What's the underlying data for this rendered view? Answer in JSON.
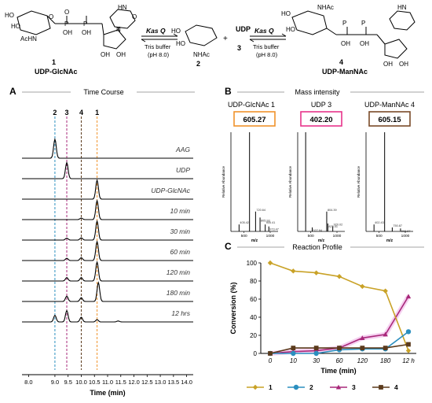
{
  "scheme": {
    "compound1_id": "1",
    "compound1_name": "UDP-GlcNAc",
    "compound2_id": "2",
    "compound3_id": "3",
    "compound3_name": "UDP",
    "plus": "+",
    "compound4_id": "4",
    "compound4_name": "UDP-ManNAc",
    "enzyme1": "Kas Q",
    "enzyme2": "Kas Q",
    "cond1_line1": "Tris buffer",
    "cond1_line2": "(pH 8.0)",
    "cond2_line1": "Tris buffer",
    "cond2_line2": "(pH 8.0)",
    "lbl_HO_a": "HO",
    "lbl_HO_b": "HO",
    "lbl_AcHN": "AcHN",
    "lbl_HN_a": "HN",
    "lbl_O_a": "O",
    "lbl_O_b": "O",
    "lbl_N_a": "N",
    "lbl_OP1": "O",
    "lbl_P1": "P",
    "lbl_P2": "P",
    "lbl_OH1": "OH",
    "lbl_OH2": "OH",
    "lbl_OHr1": "OH",
    "lbl_OHr2": "OH",
    "lbl_HO_2a": "HO",
    "lbl_HO_2b": "HO",
    "lbl_NHAc_2": "NHAc",
    "lbl_HO_4a": "HO",
    "lbl_HO_4b": "HO",
    "lbl_NHAc_4": "NHAc",
    "lbl_HN_4": "HN",
    "lbl_P3": "P",
    "lbl_P4": "P",
    "lbl_OH_4a": "OH",
    "lbl_OH_4b": "OH",
    "lbl_OH_4c": "OH",
    "lbl_OH_4d": "OH"
  },
  "panels": {
    "a_letter": "A",
    "a_title": "Time Course",
    "b_letter": "B",
    "b_title": "Mass intensity",
    "c_letter": "C",
    "c_title": "Reaction Profile"
  },
  "colors": {
    "c1": "#c9a227",
    "c2": "#2b8fbf",
    "c3": "#a8287a",
    "c4": "#5b3a1c",
    "c3_glow": "#f3c4ec",
    "box1": "#f0932b",
    "box3": "#e8348a",
    "box4": "#7a4a28"
  },
  "chart_data": [
    {
      "type": "line",
      "title": "Time Course",
      "xlabel": "Time (min)",
      "x_ticks": [
        "8.0",
        "9.0",
        "9.5",
        "10.0",
        "10.5",
        "11.0",
        "11.5",
        "12.0",
        "12.5",
        "13.0",
        "13.5",
        "14.0"
      ],
      "xlim": [
        7.75,
        14.25
      ],
      "peak_markers": [
        {
          "label": "2",
          "x": 9.0,
          "color": "#2b8fbf"
        },
        {
          "label": "3",
          "x": 9.45,
          "color": "#a8287a"
        },
        {
          "label": "4",
          "x": 10.0,
          "color": "#5b3a1c"
        },
        {
          "label": "1",
          "x": 10.6,
          "color": "#f0932b"
        }
      ],
      "traces": [
        {
          "label": "AAG",
          "peaks": [
            [
              9.0,
              1.0
            ]
          ]
        },
        {
          "label": "UDP",
          "peaks": [
            [
              9.45,
              0.85
            ]
          ]
        },
        {
          "label": "UDP-GlcNAc",
          "peaks": [
            [
              10.6,
              1.0
            ]
          ]
        },
        {
          "label": "10 min",
          "peaks": [
            [
              10.0,
              0.08
            ],
            [
              10.6,
              1.0
            ]
          ]
        },
        {
          "label": "30 min",
          "peaks": [
            [
              9.45,
              0.1
            ],
            [
              10.0,
              0.12
            ],
            [
              10.6,
              1.0
            ]
          ]
        },
        {
          "label": "60 min",
          "peaks": [
            [
              9.45,
              0.12
            ],
            [
              10.0,
              0.15
            ],
            [
              10.6,
              1.0
            ]
          ]
        },
        {
          "label": "120 min",
          "peaks": [
            [
              9.45,
              0.18
            ],
            [
              10.0,
              0.18
            ],
            [
              10.6,
              1.0
            ]
          ]
        },
        {
          "label": "180 min",
          "peaks": [
            [
              9.45,
              0.28
            ],
            [
              10.0,
              0.2
            ],
            [
              10.65,
              1.0
            ]
          ]
        },
        {
          "label": "12 hrs",
          "peaks": [
            [
              9.0,
              0.35
            ],
            [
              9.45,
              0.6
            ],
            [
              10.0,
              0.25
            ],
            [
              10.6,
              0.12
            ],
            [
              11.4,
              0.05
            ]
          ]
        }
      ]
    },
    {
      "type": "bar",
      "title": "UDP-GlcNAc 1",
      "box_value": "605.27",
      "xlabel": "m/z",
      "ylabel": "Relative Abundance",
      "x_ticks": [
        "500",
        "1000"
      ],
      "peaks": [
        [
          405.42,
          0.07
        ],
        [
          605.27,
          1.0
        ],
        [
          720.64,
          0.2
        ],
        [
          805.93,
          0.14
        ],
        [
          905.41,
          0.07
        ],
        [
          973.47,
          0.05
        ]
      ],
      "peak_labels": [
        "405.42",
        "720.64",
        "805.93",
        "905.41",
        "973.47"
      ]
    },
    {
      "type": "bar",
      "title": "UDP 3",
      "box_value": "402.20",
      "xlabel": "m/z",
      "ylabel": "Relative Abundance",
      "x_ticks": [
        "500",
        "1000"
      ],
      "peaks": [
        [
          402.2,
          1.0
        ],
        [
          527.84,
          0.04
        ],
        [
          804.39,
          0.2
        ],
        [
          825.41,
          0.08
        ],
        [
          920.02,
          0.05
        ]
      ],
      "peak_labels": [
        "527.84",
        "804.39",
        "825.41",
        "920.02"
      ]
    },
    {
      "type": "bar",
      "title": "UDP-ManNAc 4",
      "box_value": "605.15",
      "xlabel": "m/z",
      "ylabel": "Relative Abundance",
      "x_ticks": [
        "500",
        "1000"
      ],
      "peaks": [
        [
          402.43,
          0.07
        ],
        [
          605.15,
          1.0
        ],
        [
          750.87,
          0.04
        ],
        [
          908.87,
          0.03
        ]
      ],
      "peak_labels": [
        "402.43",
        "750.87",
        "908.87"
      ]
    },
    {
      "type": "line",
      "title": "Reaction Profile",
      "xlabel": "Time (min)",
      "ylabel": "Conversion (%)",
      "categories": [
        "0",
        "10",
        "30",
        "60",
        "120",
        "180",
        "12 h"
      ],
      "ylim": [
        0,
        100
      ],
      "y_ticks": [
        "0",
        "20",
        "40",
        "60",
        "80",
        "100"
      ],
      "series": [
        {
          "name": "1",
          "color": "#c9a227",
          "marker": "diamond",
          "values": [
            100,
            91,
            89,
            85,
            74,
            69,
            3
          ]
        },
        {
          "name": "2",
          "color": "#2b8fbf",
          "marker": "circle",
          "values": [
            0,
            0,
            0,
            4,
            5,
            5,
            24
          ]
        },
        {
          "name": "3",
          "color": "#a8287a",
          "marker": "triangle",
          "values": [
            0,
            2,
            3,
            6,
            17,
            21,
            63
          ]
        },
        {
          "name": "4",
          "color": "#5b3a1c",
          "marker": "square",
          "values": [
            0,
            6,
            6,
            6,
            6,
            6,
            10
          ]
        }
      ]
    }
  ]
}
